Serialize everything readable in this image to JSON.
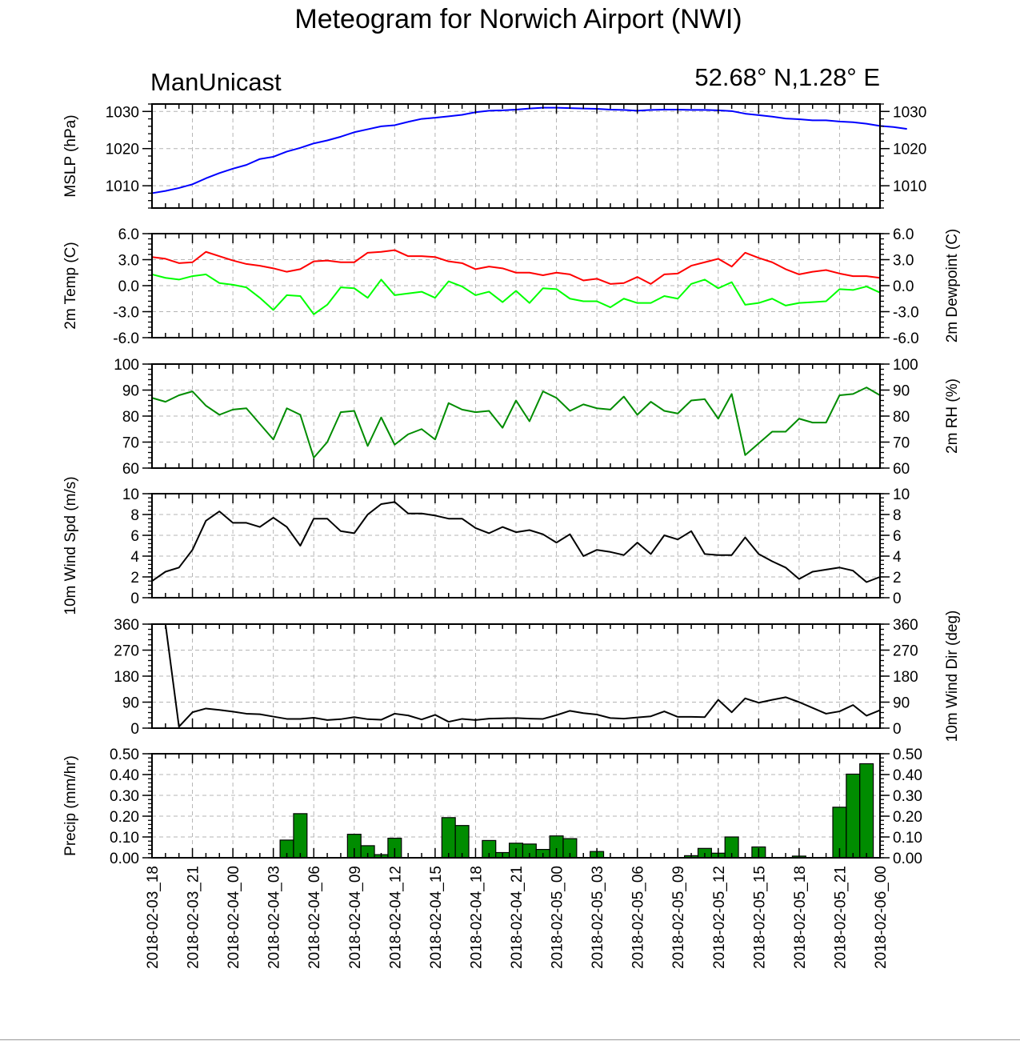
{
  "page": {
    "title": "Meteogram for Norwich Airport (NWI)",
    "source_label": "ManUnicast",
    "location_label": "52.68° N,1.28° E"
  },
  "chart_data": [
    {
      "id": "mslp",
      "type": "line",
      "ylabel_left": "MSLP (hPa)",
      "ylabel_right": "",
      "ylim": [
        1004,
        1032
      ],
      "yticks": [
        1010,
        1020,
        1030
      ],
      "ytick_labels": [
        "1010",
        "1020",
        "1030"
      ],
      "series": [
        {
          "color": "#0000ff",
          "values": [
            1008,
            1008.6,
            1009.4,
            1010.4,
            1012,
            1013.4,
            1014.6,
            1015.6,
            1017.2,
            1017.8,
            1019.2,
            1020.2,
            1021.4,
            1022.2,
            1023.2,
            1024.4,
            1025.2,
            1026,
            1026.3,
            1027.2,
            1028,
            1028.3,
            1028.7,
            1029.1,
            1029.8,
            1030.2,
            1030.3,
            1030.5,
            1030.8,
            1031,
            1031,
            1030.9,
            1030.8,
            1030.7,
            1030.5,
            1030.4,
            1030.2,
            1030.4,
            1030.5,
            1030.5,
            1030.4,
            1030.4,
            1030.3,
            1030.1,
            1029.4,
            1029,
            1028.6,
            1028.1,
            1027.9,
            1027.6,
            1027.6,
            1027.3,
            1027.1,
            1026.7,
            1026.1,
            1025.8,
            1025.3
          ]
        }
      ]
    },
    {
      "id": "temp",
      "type": "line",
      "ylabel_left": "2m Temp (C)",
      "ylabel_right": "2m Dewpoint (C)",
      "ylim": [
        -6,
        6
      ],
      "yticks": [
        -6,
        -3,
        0,
        3,
        6
      ],
      "ytick_labels": [
        "-6.0",
        "-3.0",
        "0.0",
        "3.0",
        "6.0"
      ],
      "series": [
        {
          "color": "#ff0000",
          "values": [
            3.3,
            3.1,
            2.6,
            2.7,
            3.9,
            3.4,
            2.9,
            2.5,
            2.3,
            2.0,
            1.6,
            1.9,
            2.8,
            2.9,
            2.7,
            2.7,
            3.8,
            3.9,
            4.1,
            3.4,
            3.4,
            3.3,
            2.8,
            2.6,
            1.9,
            2.2,
            2.0,
            1.5,
            1.5,
            1.2,
            1.5,
            1.3,
            0.6,
            0.8,
            0.2,
            0.3,
            1.0,
            0.2,
            1.3,
            1.4,
            2.3,
            2.7,
            3.1,
            2.2,
            3.8,
            3.2,
            2.7,
            1.9,
            1.3,
            1.6,
            1.8,
            1.4,
            1.1,
            1.1,
            0.9
          ]
        },
        {
          "color": "#00ff00",
          "values": [
            1.3,
            0.9,
            0.7,
            1.1,
            1.3,
            0.3,
            0.1,
            -0.2,
            -1.4,
            -2.8,
            -1.1,
            -1.2,
            -3.3,
            -2.2,
            -0.2,
            -0.3,
            -1.4,
            0.7,
            -1.1,
            -0.9,
            -0.7,
            -1.4,
            0.5,
            -0.1,
            -1.1,
            -0.7,
            -1.9,
            -0.6,
            -2.0,
            -0.3,
            -0.4,
            -1.5,
            -1.8,
            -1.8,
            -2.5,
            -1.5,
            -2.0,
            -2.0,
            -1.2,
            -1.5,
            0.2,
            0.7,
            -0.3,
            0.4,
            -2.2,
            -2.0,
            -1.5,
            -2.3,
            -2.0,
            -1.9,
            -1.8,
            -0.4,
            -0.5,
            -0.1,
            -0.8
          ]
        }
      ]
    },
    {
      "id": "rh",
      "type": "line",
      "ylabel_left": "",
      "ylabel_right": "2m RH (%)",
      "ylim": [
        60,
        100
      ],
      "yticks": [
        60,
        70,
        80,
        90,
        100
      ],
      "ytick_labels": [
        "60",
        "70",
        "80",
        "90",
        "100"
      ],
      "series": [
        {
          "color": "#008c00",
          "values": [
            87,
            85.5,
            88,
            89.5,
            84,
            80.5,
            82.5,
            83,
            77,
            71,
            83,
            80.5,
            64,
            70,
            81.5,
            82,
            68.5,
            79.5,
            69,
            73,
            75,
            71,
            85,
            82.5,
            81.5,
            82,
            75.5,
            86,
            78,
            89.5,
            87,
            82,
            84.5,
            83,
            82.5,
            87.5,
            80.5,
            85.5,
            82,
            81,
            86,
            86.5,
            79,
            88.5,
            65,
            69.5,
            74,
            74,
            79,
            77.5,
            77.5,
            88,
            88.5,
            91,
            88
          ]
        }
      ]
    },
    {
      "id": "wspd",
      "type": "line",
      "ylabel_left": "10m Wind Spd (m/s)",
      "ylabel_right": "",
      "ylim": [
        0,
        10
      ],
      "yticks": [
        0,
        2,
        4,
        6,
        8,
        10
      ],
      "ytick_labels": [
        "0",
        "2",
        "4",
        "6",
        "8",
        "10"
      ],
      "series": [
        {
          "color": "#000000",
          "values": [
            1.6,
            2.5,
            2.9,
            4.6,
            7.4,
            8.3,
            7.2,
            7.2,
            6.8,
            7.7,
            6.8,
            5.0,
            7.6,
            7.6,
            6.4,
            6.2,
            8.0,
            9.0,
            9.2,
            8.1,
            8.1,
            7.9,
            7.6,
            7.6,
            6.7,
            6.2,
            6.8,
            6.3,
            6.5,
            6.1,
            5.3,
            6.1,
            4.0,
            4.6,
            4.4,
            4.1,
            5.3,
            4.2,
            6.0,
            5.6,
            6.4,
            4.2,
            4.1,
            4.1,
            5.8,
            4.2,
            3.5,
            2.9,
            1.8,
            2.5,
            2.7,
            2.9,
            2.6,
            1.5,
            2.0
          ]
        }
      ]
    },
    {
      "id": "wdir",
      "type": "line",
      "ylabel_left": "",
      "ylabel_right": "10m Wind Dir (deg)",
      "ylim": [
        0,
        360
      ],
      "yticks": [
        0,
        90,
        180,
        270,
        360
      ],
      "ytick_labels": [
        "0",
        "90",
        "180",
        "270",
        "360"
      ],
      "series": [
        {
          "color": "#000000",
          "values": [
            360,
            5,
            55,
            68,
            63,
            57,
            50,
            48,
            40,
            32,
            32,
            36,
            28,
            31,
            38,
            31,
            29,
            50,
            44,
            30,
            46,
            22,
            32,
            28,
            33,
            34,
            35,
            33,
            32,
            45,
            60,
            52,
            47,
            35,
            33,
            37,
            41,
            58,
            39,
            39,
            38,
            98,
            55,
            103,
            88,
            98,
            107,
            90,
            70,
            50,
            58,
            80,
            43,
            62
          ]
        }
      ],
      "series_x_offset": 1
    },
    {
      "id": "precip",
      "type": "bar",
      "ylabel_left": "Precip (mm/hr)",
      "ylabel_right": "",
      "ylim": [
        0,
        0.5
      ],
      "yticks": [
        0,
        0.1,
        0.2,
        0.3,
        0.4,
        0.5
      ],
      "ytick_labels": [
        "0.00",
        "0.10",
        "0.20",
        "0.30",
        "0.40",
        "0.50"
      ],
      "bar_color": "#008c00",
      "values": [
        0,
        0,
        0,
        0,
        0,
        0,
        0,
        0,
        0,
        0.085,
        0.212,
        0,
        0,
        0,
        0.113,
        0.058,
        0.015,
        0.094,
        0,
        0,
        0,
        0.193,
        0.155,
        0,
        0.083,
        0.025,
        0.07,
        0.066,
        0.04,
        0.105,
        0.092,
        0,
        0.03,
        0,
        0,
        0,
        0,
        0,
        0,
        0.01,
        0.045,
        0.022,
        0.1,
        0,
        0.052,
        0,
        0,
        0.008,
        0,
        0,
        0.243,
        0.402,
        0.452,
        0
      ]
    }
  ],
  "x_axis": {
    "labels": [
      "2018-02-03_18",
      "2018-02-03_21",
      "2018-02-04_00",
      "2018-02-04_03",
      "2018-02-04_06",
      "2018-02-04_09",
      "2018-02-04_12",
      "2018-02-04_15",
      "2018-02-04_18",
      "2018-02-04_21",
      "2018-02-05_00",
      "2018-02-05_03",
      "2018-02-05_06",
      "2018-02-05_09",
      "2018-02-05_12",
      "2018-02-05_15",
      "2018-02-05_18",
      "2018-02-05_21",
      "2018-02-06_00"
    ],
    "label_interval_hours": 3,
    "hours_span": 54,
    "grid": true
  }
}
